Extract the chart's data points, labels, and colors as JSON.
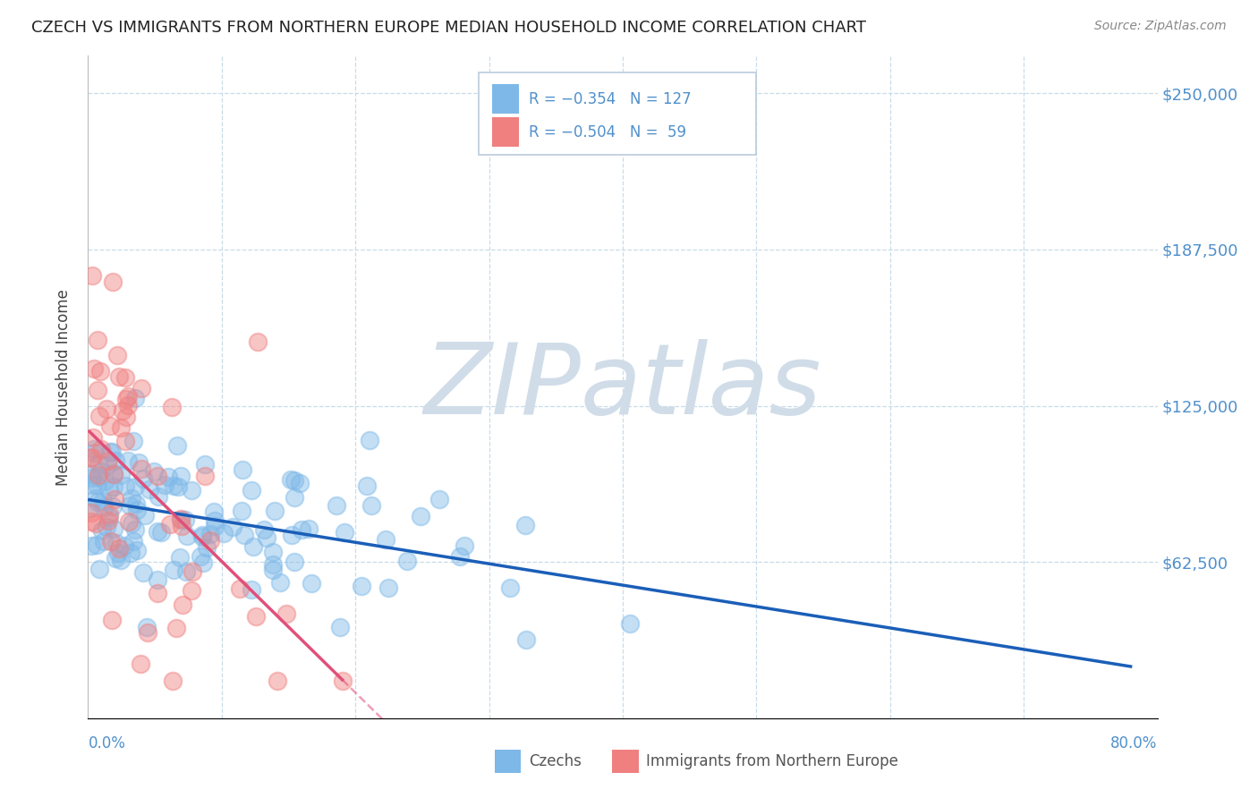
{
  "title": "CZECH VS IMMIGRANTS FROM NORTHERN EUROPE MEDIAN HOUSEHOLD INCOME CORRELATION CHART",
  "source": "Source: ZipAtlas.com",
  "ylabel": "Median Household Income",
  "xlim": [
    0.0,
    0.8
  ],
  "ylim": [
    0,
    265000
  ],
  "czech_color": "#7db8e8",
  "northern_color": "#f08080",
  "trendline_czech_color": "#1a5eb8",
  "trendline_northern_color": "#e0507a",
  "background_color": "#ffffff",
  "grid_color": "#c8dce8",
  "title_color": "#222222",
  "axis_label_color": "#5090cc",
  "watermark_color": "#c8dce8",
  "r_czech": -0.354,
  "n_czech": 127,
  "r_northern": -0.504,
  "n_northern": 59
}
